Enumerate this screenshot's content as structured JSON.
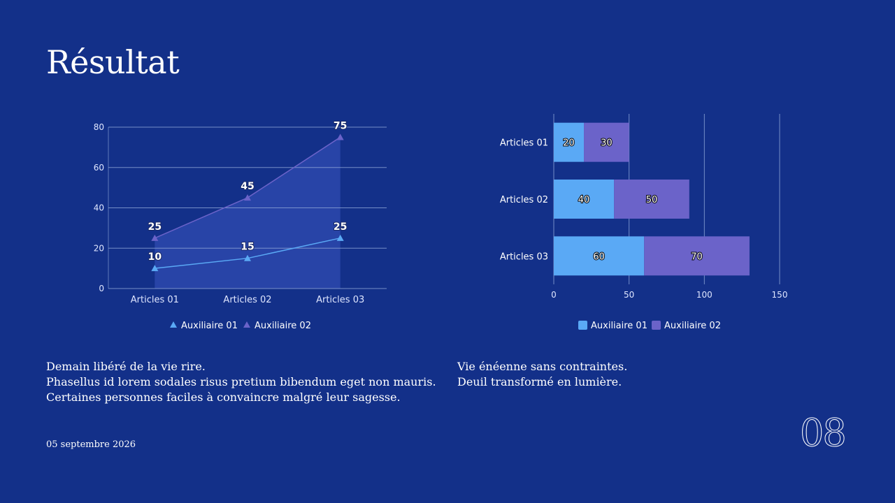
{
  "title": "Résultat",
  "colors": {
    "background": "#133089",
    "series1": "#5aa9f5",
    "series2": "#6b63c9",
    "grid": "#8fa6d8",
    "text": "#ffffff"
  },
  "chart_data": [
    {
      "type": "line",
      "categories": [
        "Articles 01",
        "Articles 02",
        "Articles 03"
      ],
      "series": [
        {
          "name": "Auxiliaire 01",
          "values": [
            10,
            15,
            25
          ]
        },
        {
          "name": "Auxiliaire 02",
          "values": [
            25,
            45,
            75
          ]
        }
      ],
      "yticks": [
        "0",
        "20",
        "40",
        "60",
        "80"
      ],
      "ylim": [
        0,
        80
      ],
      "legend": "bottom",
      "title": "",
      "xlabel": "",
      "ylabel": ""
    },
    {
      "type": "bar",
      "orientation": "horizontal",
      "stacked": true,
      "categories": [
        "Articles 01",
        "Articles 02",
        "Articles 03"
      ],
      "series": [
        {
          "name": "Auxiliaire 01",
          "values": [
            20,
            40,
            60
          ]
        },
        {
          "name": "Auxiliaire 02",
          "values": [
            30,
            50,
            70
          ]
        }
      ],
      "xticks": [
        "0",
        "50",
        "100",
        "150"
      ],
      "xlim": [
        0,
        150
      ],
      "legend": "bottom",
      "title": "",
      "xlabel": "",
      "ylabel": ""
    }
  ],
  "text_left": [
    "Demain libéré de la vie rire.",
    "Phasellus id lorem sodales risus pretium bibendum eget non mauris.",
    "Certaines personnes faciles à convaincre malgré leur sagesse."
  ],
  "text_right": [
    "Vie énéenne sans contraintes.",
    "Deuil transformé en lumière."
  ],
  "date": "05 septembre 2026",
  "page_number": "08"
}
